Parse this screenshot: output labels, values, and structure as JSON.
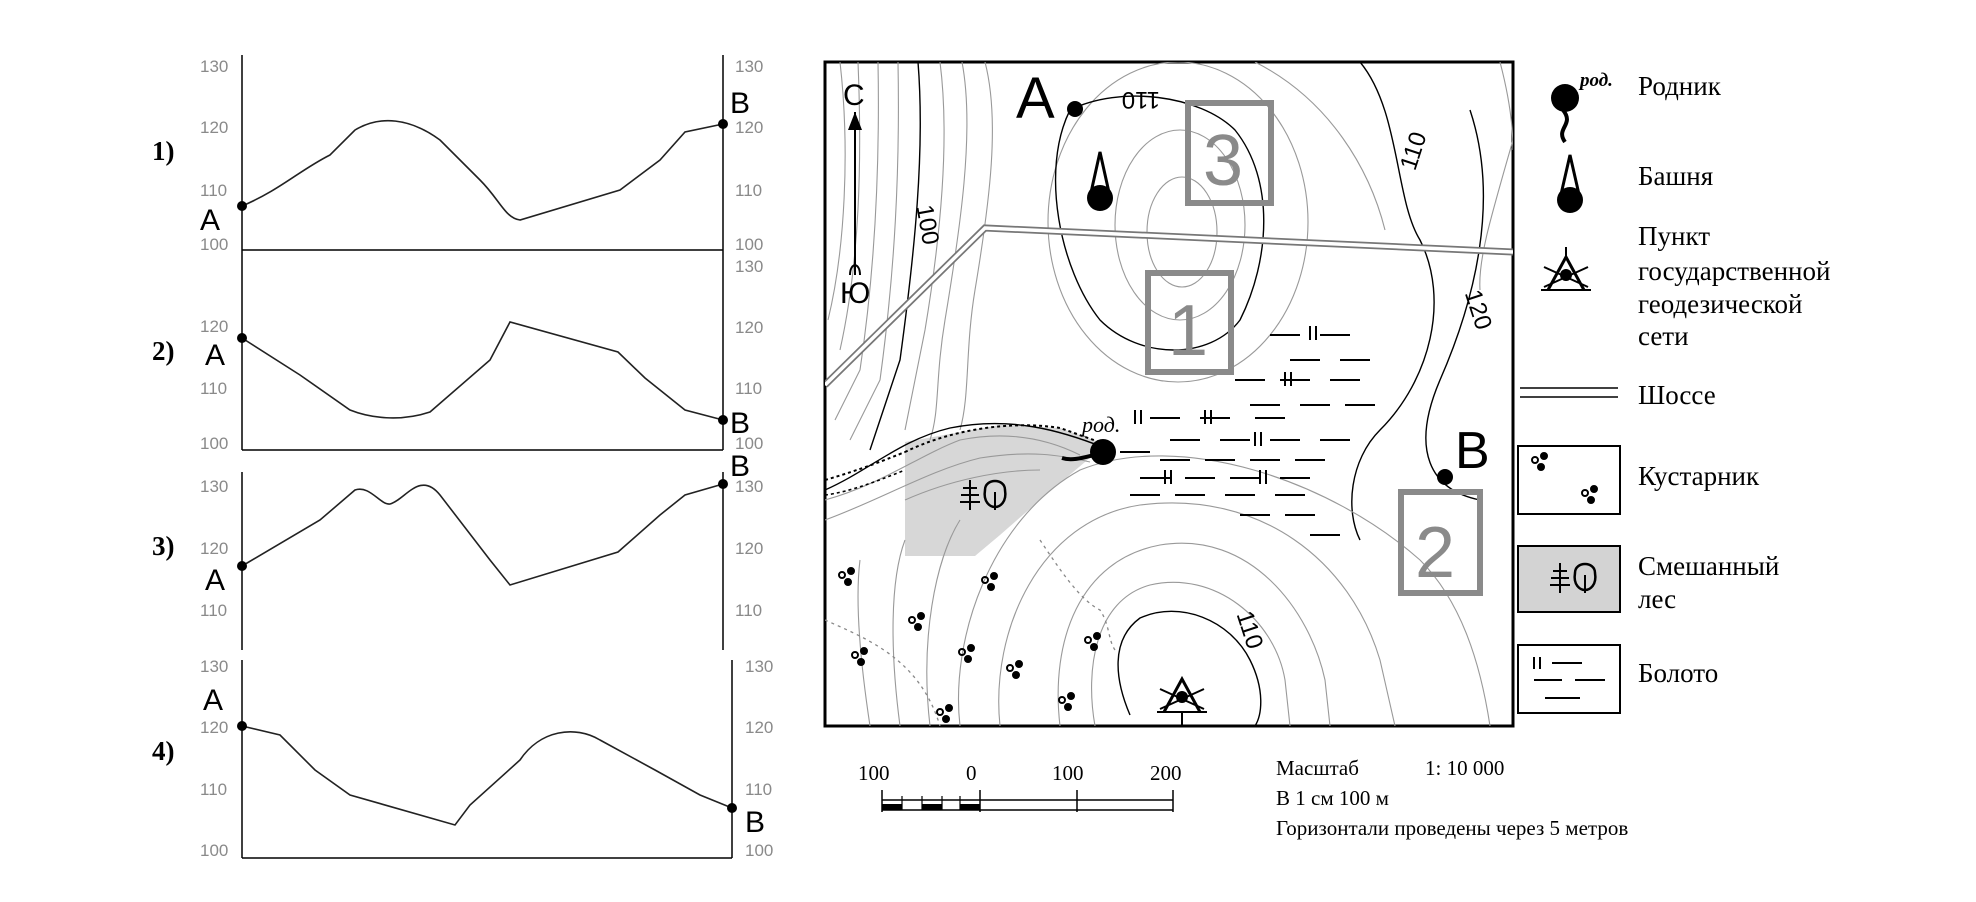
{
  "profiles": [
    {
      "label": "1)",
      "ticks_left": [
        "130",
        "120",
        "110",
        "100"
      ],
      "ticks_right": [
        "130",
        "120",
        "110",
        "100"
      ],
      "end_a": "A",
      "end_b": "B"
    },
    {
      "label": "2)",
      "ticks_left": [
        "120",
        "110",
        "100"
      ],
      "ticks_right": [
        "130",
        "120",
        "110",
        "100"
      ],
      "end_a": "A",
      "end_b": "B"
    },
    {
      "label": "3)",
      "ticks_left": [
        "130",
        "120",
        "110"
      ],
      "ticks_right": [
        "130",
        "120",
        "110"
      ],
      "end_a": "A",
      "end_b": "B"
    },
    {
      "label": "4)",
      "ticks_left": [
        "130",
        "120",
        "110",
        "100"
      ],
      "ticks_right": [
        "130",
        "120",
        "110",
        "100"
      ],
      "end_a": "A",
      "end_b": "B"
    }
  ],
  "map": {
    "point_a": "A",
    "point_b": "B",
    "north": "С",
    "south": "Ю",
    "spring_tag": "род.",
    "contours": [
      "110",
      "100",
      "110",
      "120",
      "110"
    ],
    "boxes": [
      "3",
      "1",
      "2"
    ]
  },
  "legend": {
    "spring_tag": "род.",
    "items": [
      {
        "label": "Родник",
        "icon": "spring-icon"
      },
      {
        "label": "Башня",
        "icon": "tower-icon"
      },
      {
        "label_lines": [
          "Пункт",
          "государственной",
          "геодезической",
          "сети"
        ],
        "icon": "geodetic-point-icon"
      },
      {
        "label": "Шоссе",
        "icon": "highway-icon"
      },
      {
        "label": "Кустарник",
        "icon": "shrub-icon"
      },
      {
        "label_lines": [
          "Смешанный",
          "лес"
        ],
        "icon": "mixed-forest-icon"
      },
      {
        "label": "Болото",
        "icon": "swamp-icon"
      }
    ]
  },
  "scale": {
    "ticks": [
      "100",
      "0",
      "100",
      "200"
    ],
    "caption": "Масштаб",
    "ratio": "1: 10 000",
    "line2": "В 1 см 100 м",
    "line3": "Горизонтали проведены через 5 метров"
  }
}
